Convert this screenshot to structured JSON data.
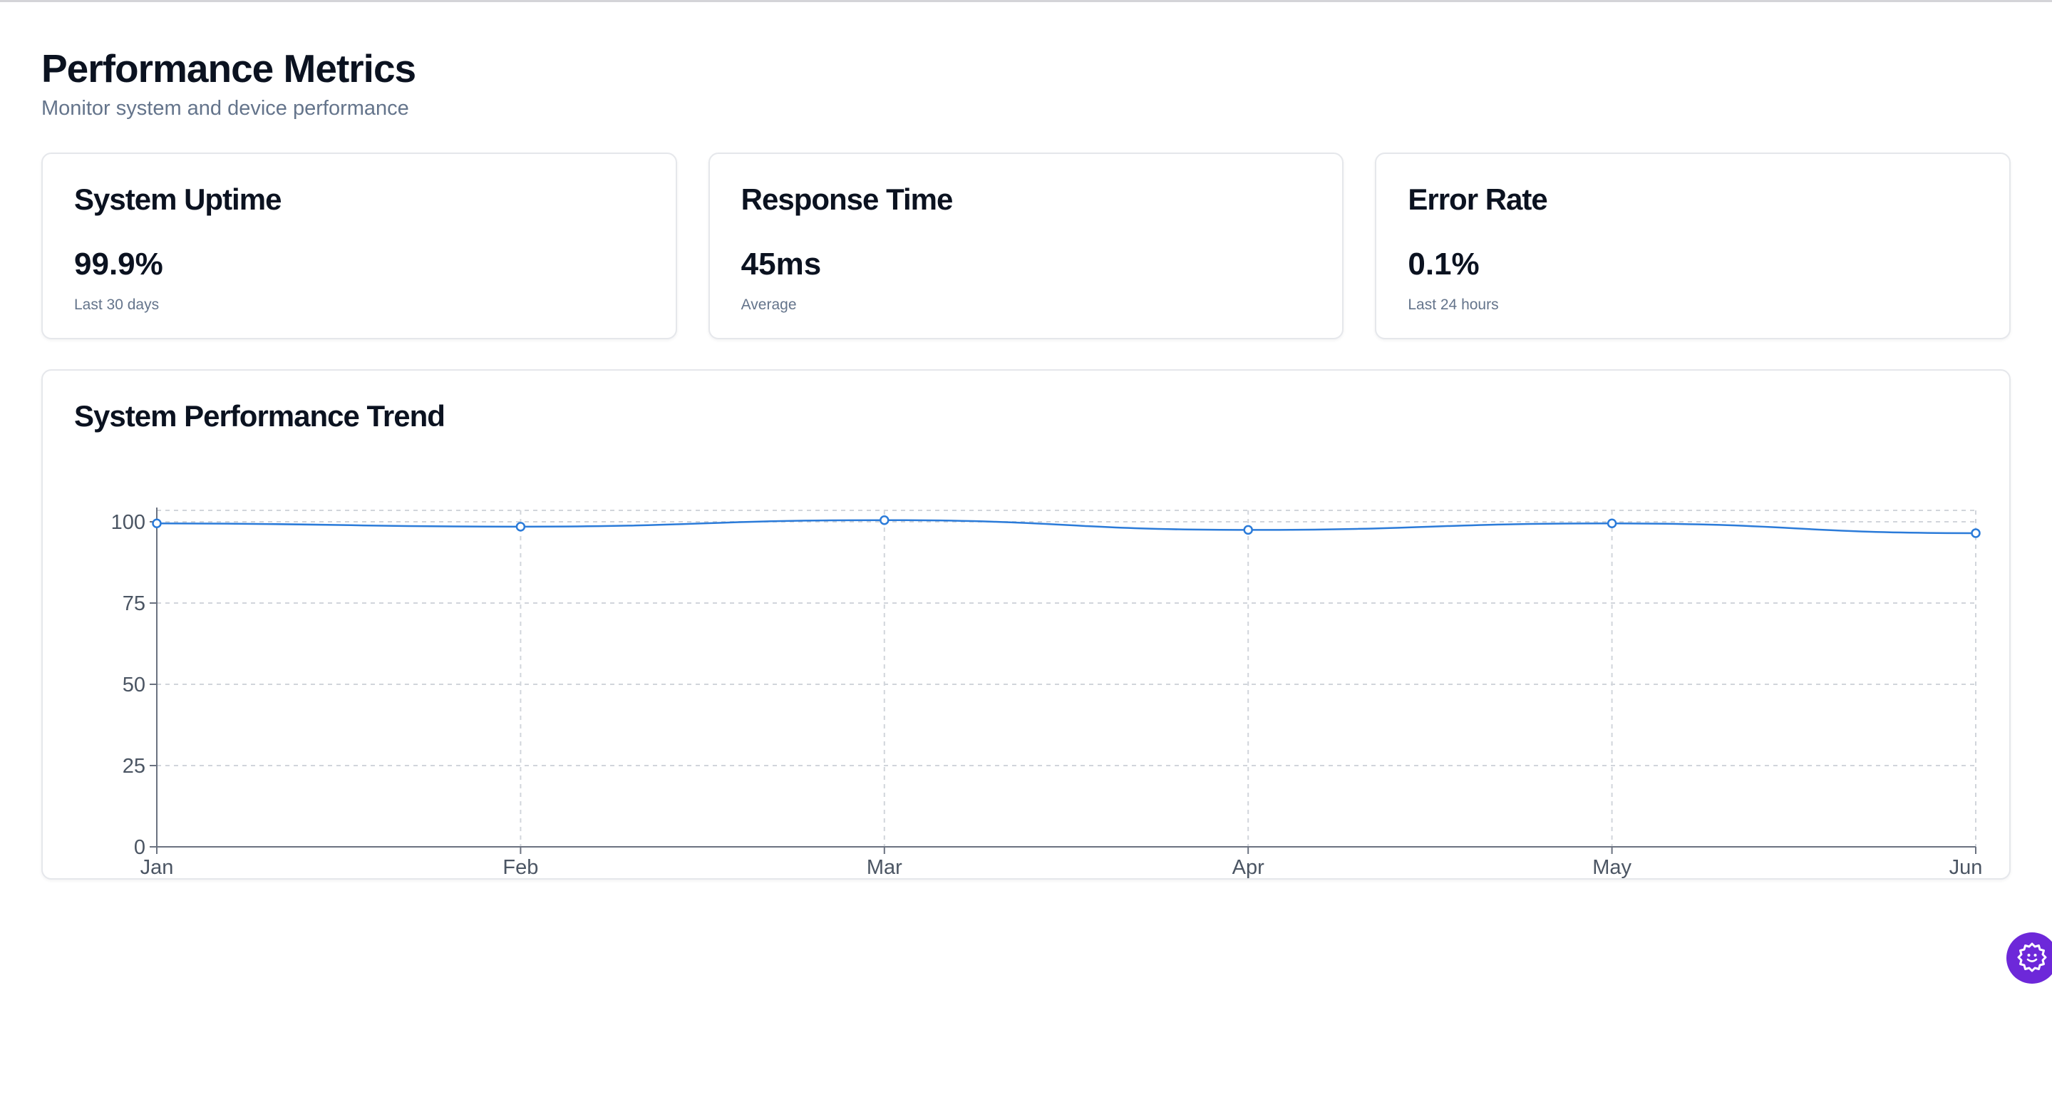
{
  "header": {
    "title": "Performance Metrics",
    "subtitle": "Monitor system and device performance"
  },
  "cards": [
    {
      "title": "System Uptime",
      "value": "99.9%",
      "caption": "Last 30 days"
    },
    {
      "title": "Response Time",
      "value": "45ms",
      "caption": "Average"
    },
    {
      "title": "Error Rate",
      "value": "0.1%",
      "caption": "Last 24 hours"
    }
  ],
  "chart_section": {
    "title": "System Performance Trend"
  },
  "chart_data": {
    "type": "line",
    "title": "System Performance Trend",
    "categories": [
      "Jan",
      "Feb",
      "Mar",
      "Apr",
      "May",
      "Jun"
    ],
    "series": [
      {
        "values": [
          99.5,
          98.5,
          100.5,
          97.5,
          99.5,
          96.5
        ]
      }
    ],
    "ylim": [
      0,
      100
    ],
    "yticks": [
      "0",
      "25",
      "50",
      "75",
      "100"
    ],
    "grid": true,
    "line_color": "#2b7bd9"
  },
  "floating_button": {
    "icon": "gear-smile-icon",
    "color": "#6d28d9"
  }
}
